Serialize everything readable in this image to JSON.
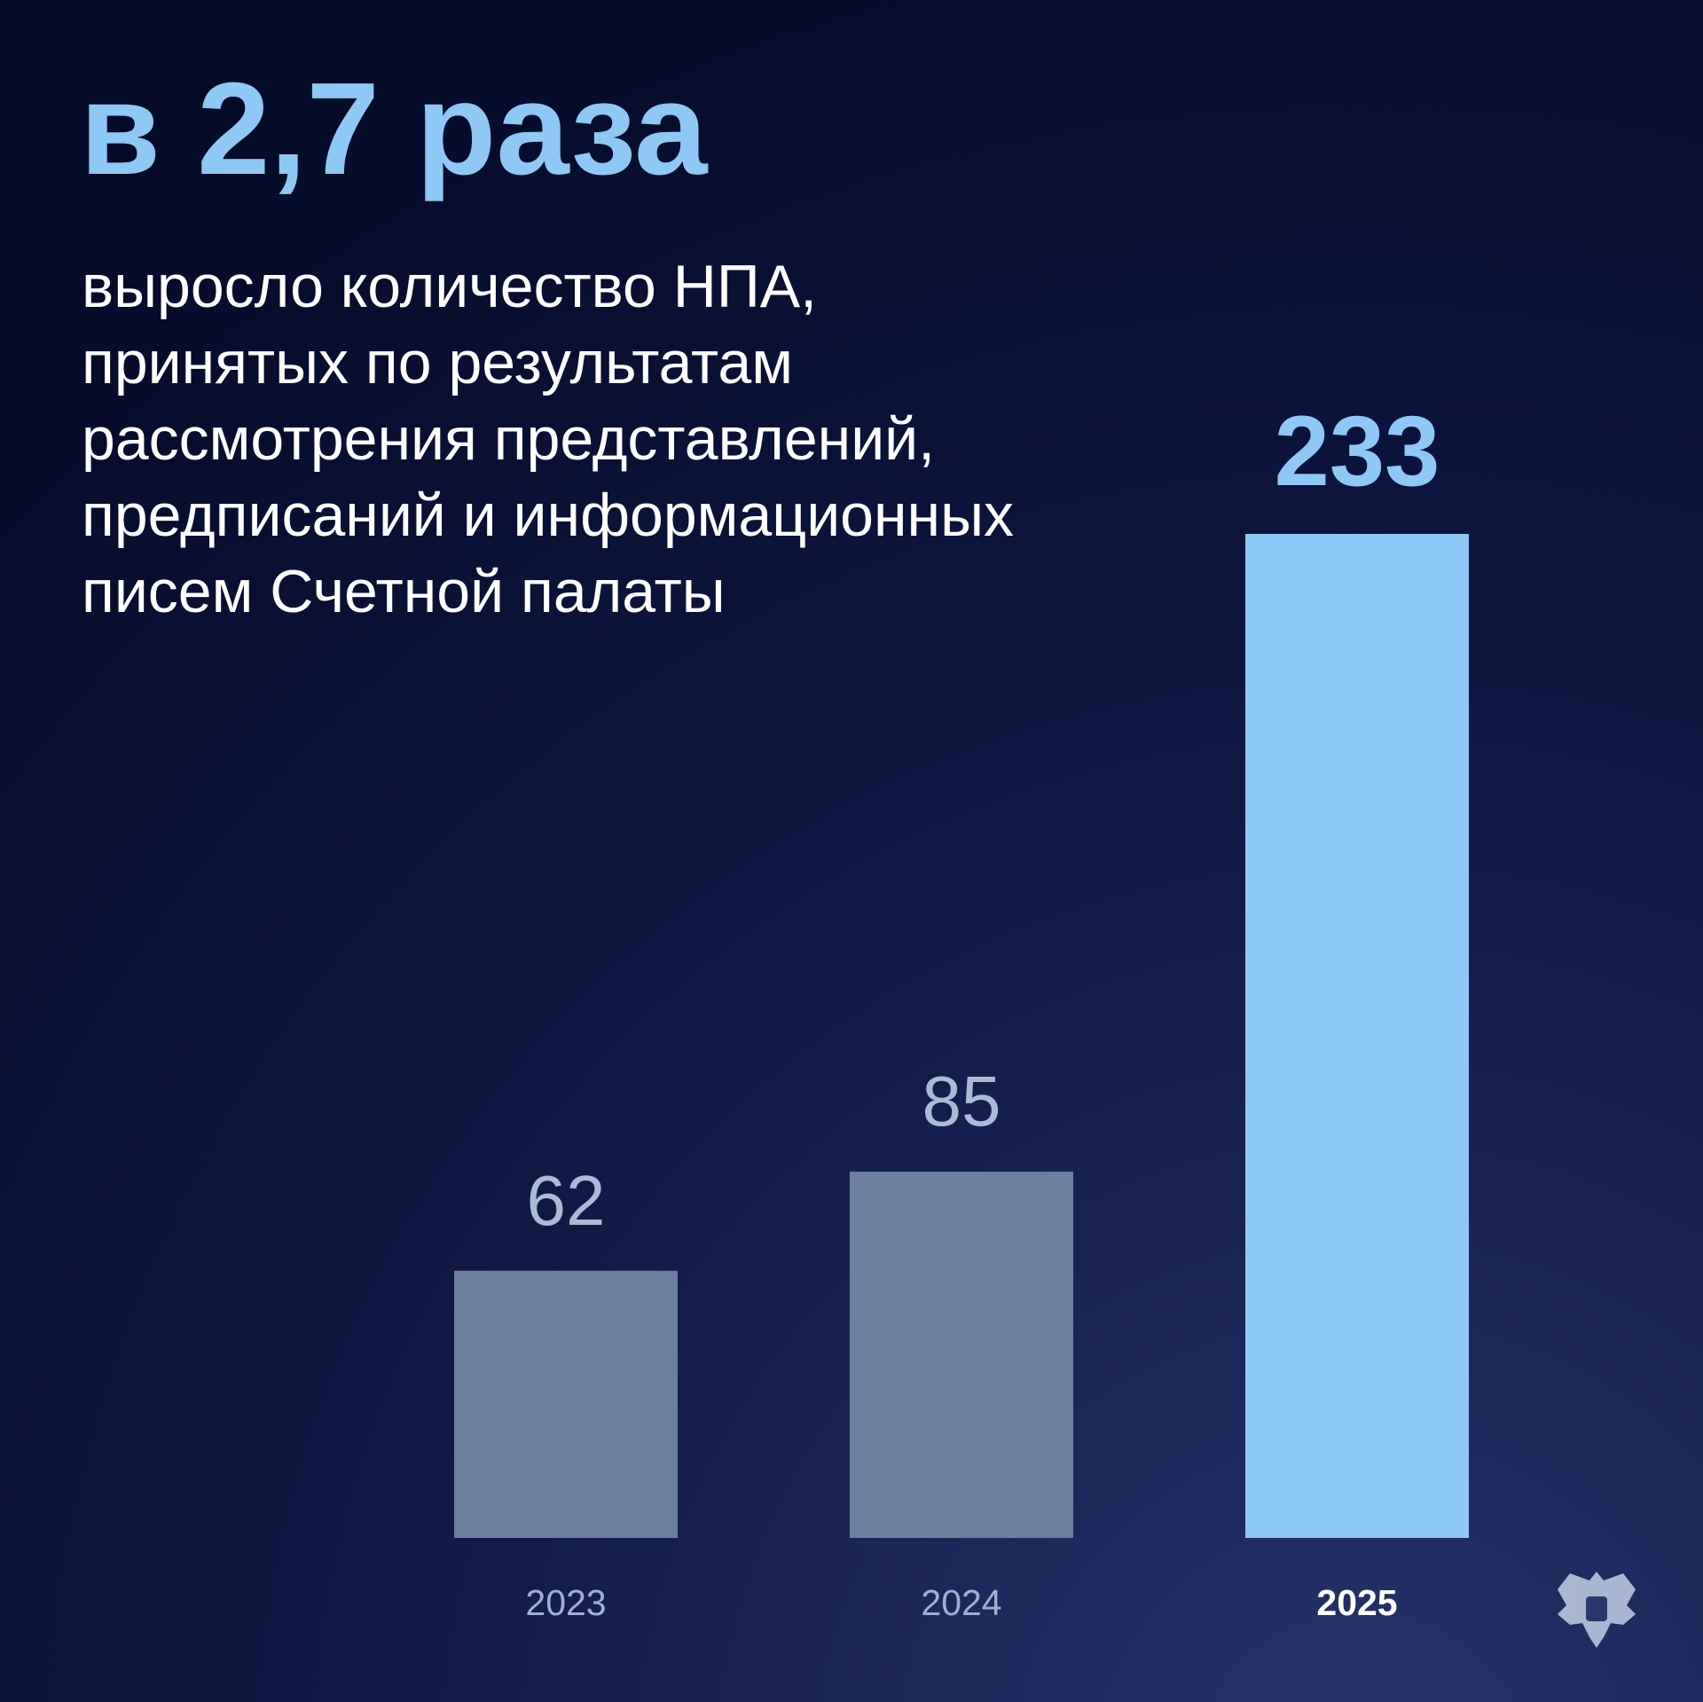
{
  "chart_data": {
    "type": "bar",
    "title": "в 2,7 раза",
    "subtitle": [
      "выросло количество НПА,",
      "принятых по результатам",
      "рассмотрения представлений,",
      "предписаний и информационных",
      "писем Счетной палаты"
    ],
    "categories": [
      "2023",
      "2024",
      "2025"
    ],
    "values": [
      62,
      85,
      233
    ],
    "colors": [
      "#6b809f",
      "#6b809f",
      "#8ec8f4"
    ],
    "highlight": 2
  }
}
